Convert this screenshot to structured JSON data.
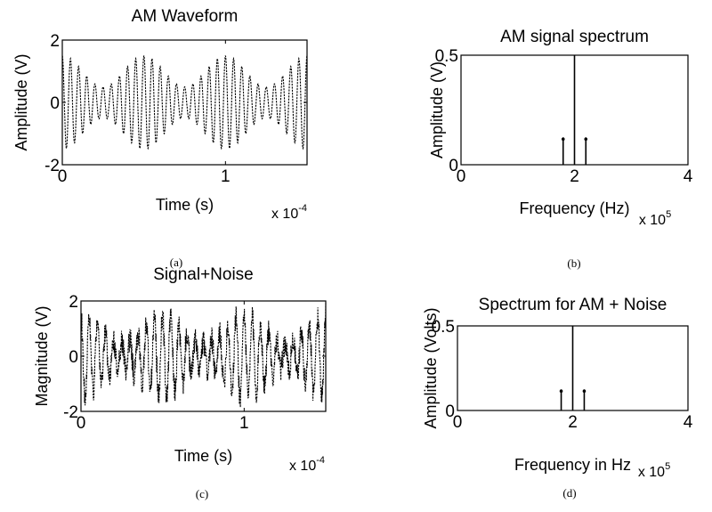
{
  "chart_data": [
    {
      "id": "a",
      "type": "line",
      "title": "AM Waveform",
      "xlabel": "Time (s)",
      "ylabel": "Amplitude (V)",
      "x_multiplier": "x 10",
      "x_exponent": "-4",
      "caption": "(a)",
      "xlim": [
        0,
        1.5
      ],
      "ylim": [
        -2,
        2
      ],
      "xticks": [
        0,
        1
      ],
      "xtick_labels": [
        "0",
        "1"
      ],
      "yticks": [
        -2,
        0,
        2
      ],
      "ytick_labels": [
        "-2",
        "0",
        "2"
      ],
      "series": [
        {
          "carrier_freq_hz": 200000,
          "mod_freq_hz": 20000,
          "mod_index": 0.5,
          "carrier_amplitude": 1.0,
          "noise": false
        }
      ]
    },
    {
      "id": "b",
      "type": "bar",
      "title": "AM signal spectrum",
      "xlabel": "Frequency (Hz)",
      "ylabel": "Amplitude (V)",
      "x_multiplier": "x 10",
      "x_exponent": "5",
      "caption": "(b)",
      "xlim": [
        0,
        4
      ],
      "ylim": [
        0,
        0.5
      ],
      "xticks": [
        0,
        2,
        4
      ],
      "xtick_labels": [
        "0",
        "2",
        "4"
      ],
      "yticks": [
        0,
        0.5
      ],
      "ytick_labels": [
        "0",
        "0.5"
      ],
      "x": [
        1.8,
        2.0,
        2.2
      ],
      "values": [
        0.125,
        0.5,
        0.125
      ]
    },
    {
      "id": "c",
      "type": "line",
      "title": "Signal+Noise",
      "xlabel": "Time (s)",
      "ylabel": "Magnitude (V)",
      "x_multiplier": "x 10",
      "x_exponent": "-4",
      "caption": "(c)",
      "xlim": [
        0,
        1.5
      ],
      "ylim": [
        -2,
        2
      ],
      "xticks": [
        0,
        1
      ],
      "xtick_labels": [
        "0",
        "1"
      ],
      "yticks": [
        -2,
        0,
        2
      ],
      "ytick_labels": [
        "-2",
        "0",
        "2"
      ],
      "series": [
        {
          "carrier_freq_hz": 200000,
          "mod_freq_hz": 20000,
          "mod_index": 0.5,
          "carrier_amplitude": 1.0,
          "noise": true
        }
      ]
    },
    {
      "id": "d",
      "type": "bar",
      "title": "Spectrum for AM + Noise",
      "xlabel": "Frequency in Hz",
      "ylabel": "Amplitude (Volts)",
      "x_multiplier": "x 10",
      "x_exponent": "5",
      "caption": "(d)",
      "xlim": [
        0,
        4
      ],
      "ylim": [
        0,
        0.5
      ],
      "xticks": [
        0,
        2,
        4
      ],
      "xtick_labels": [
        "0",
        "2",
        "4"
      ],
      "yticks": [
        0,
        0.5
      ],
      "ytick_labels": [
        "0",
        "0.5"
      ],
      "x": [
        1.8,
        2.0,
        2.2
      ],
      "values": [
        0.125,
        0.5,
        0.125
      ]
    }
  ]
}
